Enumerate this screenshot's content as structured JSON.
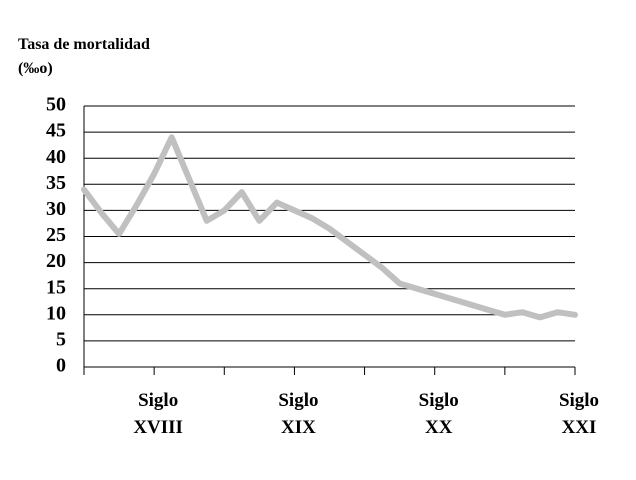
{
  "chart_data": {
    "type": "line",
    "y_label": [
      "Tasa de mortalidad",
      "(‰o)"
    ],
    "categories": [
      null,
      null,
      null,
      null,
      "Siglo XVIII",
      null,
      null,
      null,
      null,
      null,
      null,
      null,
      "Siglo XIX",
      null,
      null,
      null,
      null,
      null,
      null,
      null,
      "Siglo XX",
      null,
      null,
      null,
      null,
      null,
      null,
      null,
      "Siglo XXI"
    ],
    "series": [
      {
        "color": "#c0c0c0",
        "values": [
          34,
          29.5,
          25.5,
          31,
          37,
          44,
          36,
          28,
          30,
          33.5,
          28,
          31.5,
          30,
          28.5,
          26.5,
          24,
          21.5,
          19,
          16,
          15,
          14,
          13,
          12,
          11,
          10,
          10.5,
          9.5,
          10.5,
          10
        ]
      }
    ],
    "ylim": [
      0,
      50
    ],
    "yticks": [
      0,
      5,
      10,
      15,
      20,
      25,
      30,
      35,
      40,
      45,
      50
    ],
    "grid": true
  }
}
